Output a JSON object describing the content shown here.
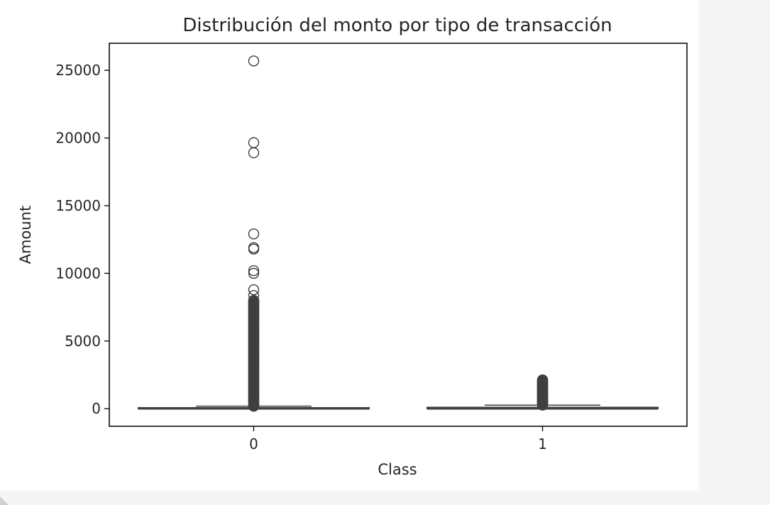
{
  "chart_data": {
    "type": "boxplot",
    "title": "Distribución del monto por tipo de transacción",
    "xlabel": "Class",
    "ylabel": "Amount",
    "categories": [
      "0",
      "1"
    ],
    "ylim": [
      -1300,
      27000
    ],
    "yticks": [
      0,
      5000,
      10000,
      15000,
      20000,
      25000
    ],
    "grid": false,
    "box_color": "#3274a1",
    "series": [
      {
        "category": "0",
        "whisker_low": 0,
        "q1": 5.65,
        "median": 22,
        "q3": 77.05,
        "whisker_high": 184,
        "outlier_range": [
          185,
          25691
        ],
        "outliers": [
          25691,
          19656,
          18910,
          12910,
          11898,
          11790,
          10199,
          10000,
          8790,
          8360,
          8000,
          7800,
          7600,
          7400,
          7200,
          7000,
          6800,
          6600,
          6400,
          6200,
          6000,
          5800,
          5600,
          5400,
          5200,
          5000,
          4800,
          4600,
          4400,
          4200,
          4000,
          3800,
          3600,
          3400,
          3200,
          3000,
          2800,
          2600,
          2400,
          2200,
          2000,
          1800,
          1600,
          1400,
          1200,
          1000,
          800,
          600,
          400,
          200
        ]
      },
      {
        "category": "1",
        "whisker_low": 0,
        "q1": 1,
        "median": 9,
        "q3": 105,
        "whisker_high": 262,
        "outlier_range": [
          264,
          2126
        ],
        "outliers": [
          2126,
          1900,
          1700,
          1500,
          1300,
          1100,
          900,
          800,
          700,
          600,
          500,
          400,
          300
        ]
      }
    ]
  }
}
